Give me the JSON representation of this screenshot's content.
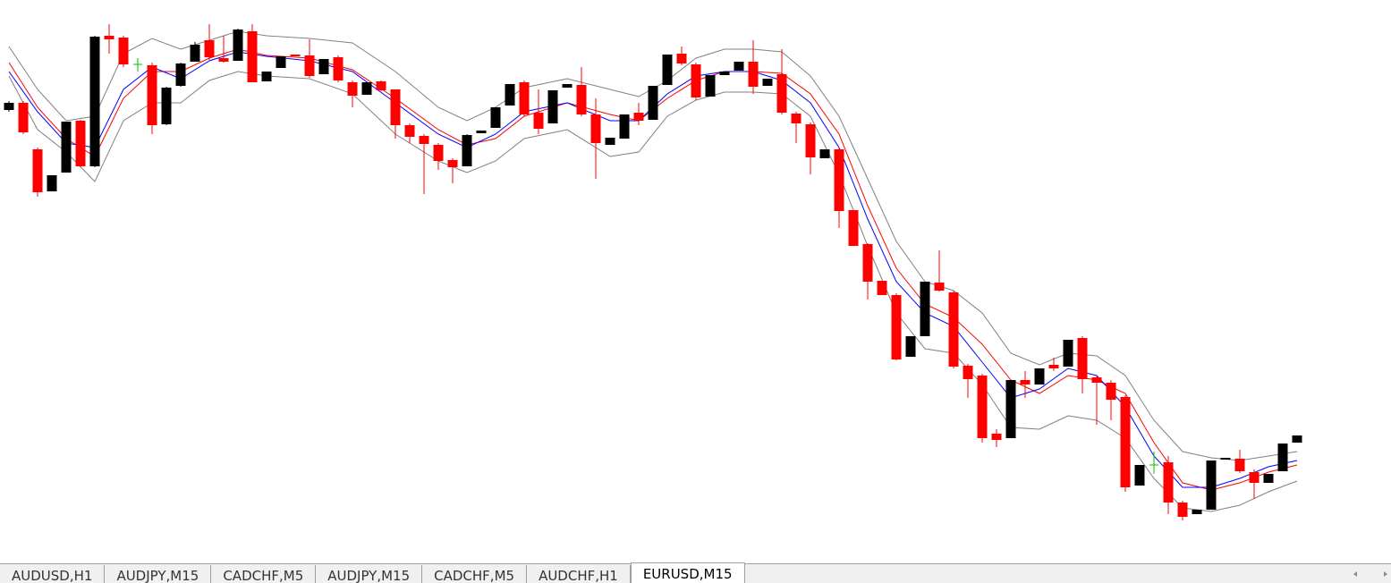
{
  "chart_data": {
    "type": "candlestick",
    "open": [
      507,
      515,
      463,
      416,
      437,
      495,
      444,
      590,
      588,
      558,
      557,
      491,
      534,
      561,
      585,
      565,
      562,
      595,
      539,
      554,
      569,
      568,
      547,
      566,
      538,
      524,
      539,
      530,
      490,
      478,
      468,
      451,
      444,
      481,
      487,
      512,
      538,
      504,
      492,
      532,
      535,
      502,
      468,
      475,
      504,
      496,
      535,
      570,
      558,
      522,
      546,
      551,
      561,
      534,
      547,
      503,
      491,
      453,
      463,
      395,
      357,
      316,
      300,
      231,
      254,
      314,
      303,
      221,
      210,
      145,
      140,
      205,
      200,
      222,
      220,
      252,
      208,
      202,
      186,
      87,
      110,
      113,
      68,
      55,
      60,
      116,
      117,
      102,
      90,
      103,
      135
    ],
    "high": [
      517,
      517,
      465,
      434,
      494,
      496,
      590,
      603,
      590,
      565,
      560,
      533,
      560,
      583,
      603,
      590,
      598,
      603,
      550,
      567,
      569,
      586,
      564,
      568,
      540,
      538,
      540,
      530,
      492,
      480,
      470,
      453,
      480,
      484,
      510,
      536,
      540,
      530,
      529,
      536,
      555,
      520,
      476,
      502,
      515,
      534,
      569,
      578,
      560,
      546,
      550,
      561,
      585,
      542,
      575,
      505,
      493,
      463,
      465,
      395,
      358,
      316,
      302,
      254,
      315,
      350,
      305,
      223,
      212,
      150,
      205,
      215,
      218,
      230,
      250,
      254,
      210,
      205,
      188,
      110,
      125,
      120,
      70,
      60,
      115,
      118,
      127,
      105,
      100,
      134,
      143
    ],
    "low": [
      505,
      480,
      410,
      416,
      437,
      443,
      443,
      570,
      555,
      550,
      480,
      490,
      533,
      561,
      563,
      560,
      562,
      538,
      539,
      554,
      567,
      543,
      547,
      538,
      510,
      524,
      528,
      475,
      470,
      413,
      440,
      425,
      444,
      481,
      487,
      512,
      500,
      480,
      492,
      532,
      500,
      430,
      468,
      475,
      490,
      496,
      535,
      557,
      518,
      522,
      546,
      551,
      525,
      534,
      502,
      470,
      435,
      453,
      375,
      355,
      295,
      300,
      227,
      231,
      254,
      304,
      218,
      185,
      135,
      130,
      140,
      185,
      200,
      215,
      220,
      190,
      155,
      160,
      80,
      87,
      100,
      55,
      48,
      55,
      60,
      116,
      101,
      72,
      90,
      103,
      135
    ],
    "close": [
      515,
      482,
      415,
      434,
      494,
      444,
      589,
      586,
      558,
      558,
      490,
      532,
      559,
      580,
      566,
      561,
      597,
      538,
      550,
      567,
      567,
      545,
      564,
      540,
      523,
      538,
      529,
      490,
      477,
      469,
      450,
      443,
      479,
      484,
      510,
      536,
      502,
      486,
      529,
      536,
      502,
      470,
      476,
      502,
      495,
      534,
      569,
      559,
      521,
      546,
      550,
      561,
      533,
      542,
      504,
      492,
      454,
      463,
      394,
      355,
      315,
      300,
      228,
      254,
      315,
      305,
      220,
      206,
      140,
      138,
      205,
      200,
      218,
      218,
      250,
      206,
      202,
      183,
      85,
      110,
      110,
      68,
      52,
      60,
      115,
      118,
      103,
      90,
      100,
      134,
      143
    ],
    "up_color": "#000000",
    "down_color": "#ff0000",
    "doji_color": "#00c000",
    "ylim": [
      0,
      630
    ],
    "lines": [
      {
        "x": [
          0,
          2,
          4,
          6,
          8,
          10,
          12,
          14,
          16,
          18,
          21,
          24,
          27,
          30,
          32,
          34,
          36,
          39,
          42,
          44,
          46,
          48,
          50,
          52,
          54,
          56,
          58,
          60,
          62,
          64,
          66,
          68,
          70,
          72,
          74,
          76,
          78,
          80,
          82,
          84,
          86,
          88,
          90
        ],
        "color": "#808080",
        "values": [
          578,
          530,
          495,
          500,
          570,
          587,
          575,
          585,
          595,
          590,
          587,
          582,
          550,
          510,
          495,
          510,
          532,
          542,
          530,
          522,
          540,
          565,
          575,
          575,
          572,
          545,
          500,
          430,
          360,
          315,
          305,
          280,
          235,
          222,
          235,
          232,
          210,
          160,
          125,
          118,
          115,
          120,
          125
        ]
      },
      {
        "x": [
          0,
          2,
          4,
          6,
          8,
          10,
          12,
          14,
          16,
          18,
          21,
          24,
          27,
          30,
          32,
          34,
          36,
          39,
          42,
          44,
          46,
          48,
          50,
          52,
          54,
          56,
          58,
          60,
          62,
          64,
          66,
          68,
          70,
          72,
          74,
          76,
          78,
          80,
          82,
          84,
          86,
          88,
          90
        ],
        "color": "#808080",
        "values": [
          545,
          485,
          460,
          427,
          495,
          515,
          515,
          540,
          550,
          545,
          542,
          525,
          480,
          450,
          437,
          450,
          475,
          485,
          455,
          460,
          500,
          518,
          527,
          527,
          525,
          500,
          435,
          355,
          280,
          240,
          235,
          200,
          152,
          150,
          165,
          160,
          140,
          95,
          62,
          58,
          65,
          80,
          92
        ]
      },
      {
        "x": [
          0,
          2,
          4,
          6,
          8,
          10,
          12,
          14,
          16,
          18,
          21,
          24,
          27,
          30,
          32,
          34,
          36,
          39,
          42,
          44,
          46,
          48,
          50,
          52,
          54,
          56,
          58,
          60,
          62,
          64,
          66,
          68,
          70,
          72,
          74,
          76,
          78,
          80,
          82,
          84,
          86,
          88,
          90
        ],
        "color": "#ff0000",
        "values": [
          560,
          510,
          475,
          455,
          520,
          550,
          550,
          565,
          575,
          568,
          565,
          552,
          520,
          485,
          468,
          475,
          500,
          515,
          502,
          495,
          520,
          540,
          550,
          550,
          548,
          525,
          480,
          400,
          330,
          290,
          275,
          245,
          205,
          190,
          210,
          205,
          190,
          135,
          90,
          82,
          90,
          102,
          110
        ]
      },
      {
        "x": [
          0,
          2,
          4,
          6,
          8,
          10,
          12,
          14,
          16,
          18,
          21,
          24,
          27,
          30,
          32,
          34,
          36,
          39,
          42,
          44,
          46,
          48,
          50,
          52,
          54,
          56,
          58,
          60,
          62,
          64,
          66,
          68,
          70,
          72,
          74,
          76,
          78,
          80,
          82,
          84,
          86,
          88,
          90
        ],
        "color": "#0000ff",
        "values": [
          550,
          505,
          470,
          465,
          530,
          555,
          542,
          562,
          572,
          567,
          562,
          550,
          515,
          480,
          465,
          480,
          505,
          515,
          495,
          495,
          525,
          545,
          550,
          550,
          540,
          515,
          465,
          385,
          315,
          280,
          265,
          225,
          185,
          195,
          218,
          210,
          175,
          120,
          85,
          85,
          95,
          108,
          115
        ]
      }
    ]
  },
  "tabs": [
    "AUDUSD,H1",
    "AUDJPY,M15",
    "CADCHF,M5",
    "AUDJPY,M15",
    "CADCHF,M5",
    "AUDCHF,H1",
    "EURUSD,M15"
  ],
  "active_tab": 6
}
